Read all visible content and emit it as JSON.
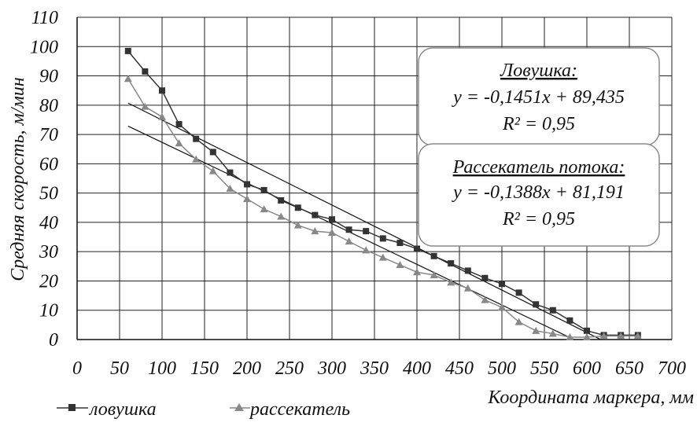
{
  "chart_data": {
    "type": "scatter",
    "title": "",
    "xlabel": "Координата маркера, мм",
    "ylabel": "Средняя скорость, м/мин",
    "xlim": [
      0,
      700
    ],
    "ylim": [
      0,
      110
    ],
    "xticks": [
      "0",
      "50",
      "100",
      "150",
      "200",
      "250",
      "300",
      "350",
      "400",
      "450",
      "500",
      "550",
      "600",
      "650",
      "700"
    ],
    "yticks": [
      "0",
      "10",
      "20",
      "30",
      "40",
      "50",
      "60",
      "70",
      "80",
      "90",
      "100",
      "110"
    ],
    "grid": "vertical",
    "legend_position": "bottom-left",
    "series": [
      {
        "name": "ловушка",
        "color": "#333333",
        "marker": "square",
        "x": [
          60,
          80,
          100,
          120,
          140,
          160,
          180,
          200,
          220,
          240,
          260,
          280,
          300,
          320,
          340,
          360,
          380,
          400,
          420,
          440,
          460,
          480,
          500,
          520,
          540,
          560,
          580,
          600,
          620,
          640,
          660
        ],
        "y": [
          98.5,
          91.5,
          85,
          73.5,
          68.5,
          64,
          57,
          53,
          51,
          47.5,
          45,
          42.5,
          41,
          37.5,
          37,
          34.5,
          33,
          31,
          28.5,
          26,
          23.5,
          21,
          19,
          16,
          12,
          10,
          6.5,
          3,
          1.5,
          1.5,
          1.5
        ]
      },
      {
        "name": "рассекатель",
        "color": "#888888",
        "marker": "triangle",
        "x": [
          60,
          80,
          100,
          120,
          140,
          160,
          180,
          200,
          220,
          240,
          260,
          280,
          300,
          320,
          340,
          360,
          380,
          400,
          420,
          440,
          460,
          480,
          500,
          520,
          540,
          560,
          580,
          600,
          620,
          640,
          660
        ],
        "y": [
          89,
          79.5,
          76,
          67,
          61.5,
          57.5,
          51.5,
          48,
          44.5,
          42,
          39,
          37,
          36.5,
          33.5,
          30.5,
          28,
          25.5,
          23,
          22,
          19.5,
          17.5,
          13.5,
          11,
          6,
          3,
          2,
          0.8,
          0.8,
          1.2,
          1.2,
          1.2
        ]
      }
    ],
    "trendlines": [
      {
        "series": "ловушка",
        "slope": -0.1451,
        "intercept": 89.435,
        "x_range": [
          60,
          617
        ]
      },
      {
        "series": "рассекатель",
        "slope": -0.1388,
        "intercept": 81.191,
        "x_range": [
          60,
          585
        ]
      }
    ],
    "annotations": [
      {
        "title": "Ловушка:",
        "equation": "y = -0,1451x + 89,435",
        "r2": "R² = 0,95"
      },
      {
        "title": "Рассекатель потока:",
        "equation": "y = -0,1388x + 81,191",
        "r2": "R² = 0,95"
      }
    ]
  }
}
